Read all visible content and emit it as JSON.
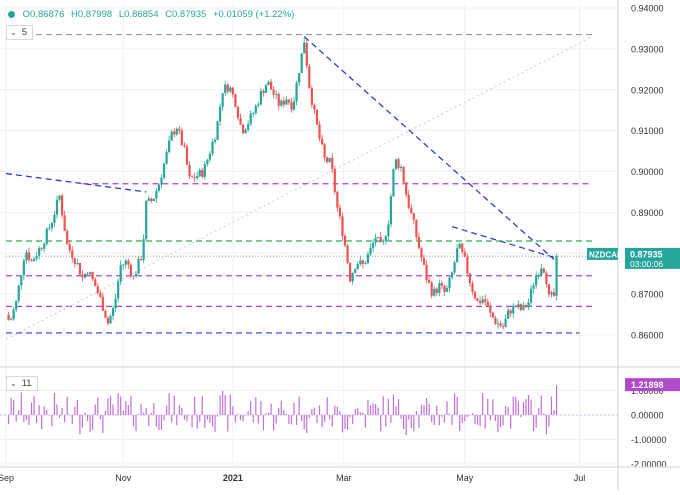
{
  "ohlc_legend": {
    "open": "O0.86876",
    "high": "H0.87998",
    "low": "L0.86854",
    "close": "C0.87935",
    "change": "+0.01059 (+1.22%)",
    "color": "#26a69a"
  },
  "price_pane_indicator": {
    "value": "5"
  },
  "volume_pane_indicator": {
    "value": "11"
  },
  "price_label": {
    "symbol": "NZDCAD",
    "price": "0.87935",
    "countdown": "03:00:06",
    "color": "#26a69a"
  },
  "volume_label": {
    "value": "1.21898",
    "color": "#b04ac8"
  },
  "colors": {
    "up": "#26a69a",
    "down": "#ef5350",
    "volume": "#c26fd8",
    "trend_blue": "#2b3fd0",
    "level_purple": "#b441d6",
    "level_green": "#22b14c",
    "grid": "#eef0f4"
  },
  "chart_data": [
    {
      "type": "candlestick",
      "title": "",
      "x_tick_labels": [
        "Sep",
        "Nov",
        "2021",
        "Mar",
        "May",
        "Jul"
      ],
      "y_tick_labels": [
        "0.94000",
        "0.93000",
        "0.92000",
        "0.91000",
        "0.90000",
        "0.89000",
        "0.88000",
        "0.87000",
        "0.86000"
      ],
      "ylim": [
        0.8575,
        0.94
      ],
      "x_range_weeks": [
        0,
        47
      ],
      "x_ticks_weeks": [
        0,
        9.2,
        17.8,
        26.5,
        36,
        45
      ],
      "grid": true,
      "close_path_weeks": [
        [
          0,
          0.865
        ],
        [
          0.3,
          0.863
        ],
        [
          0.8,
          0.868
        ],
        [
          1.5,
          0.881
        ],
        [
          2,
          0.878
        ],
        [
          2.8,
          0.882
        ],
        [
          3.5,
          0.887
        ],
        [
          4.2,
          0.894
        ],
        [
          4.8,
          0.882
        ],
        [
          5.5,
          0.878
        ],
        [
          6,
          0.874
        ],
        [
          6.4,
          0.876
        ],
        [
          7,
          0.872
        ],
        [
          7.5,
          0.868
        ],
        [
          8,
          0.863
        ],
        [
          8.5,
          0.867
        ],
        [
          9,
          0.877
        ],
        [
          9.5,
          0.878
        ],
        [
          10,
          0.874
        ],
        [
          10.7,
          0.88
        ],
        [
          11,
          0.892
        ],
        [
          11.5,
          0.893
        ],
        [
          12,
          0.897
        ],
        [
          12.5,
          0.903
        ],
        [
          13,
          0.909
        ],
        [
          13.4,
          0.911
        ],
        [
          14,
          0.905
        ],
        [
          14.4,
          0.898
        ],
        [
          15,
          0.899
        ],
        [
          15.5,
          0.9
        ],
        [
          16,
          0.905
        ],
        [
          16.5,
          0.91
        ],
        [
          17,
          0.92
        ],
        [
          17.5,
          0.921
        ],
        [
          18,
          0.917
        ],
        [
          18.5,
          0.91
        ],
        [
          19,
          0.912
        ],
        [
          19.5,
          0.915
        ],
        [
          20,
          0.919
        ],
        [
          20.5,
          0.922
        ],
        [
          21,
          0.919
        ],
        [
          21.5,
          0.916
        ],
        [
          22,
          0.918
        ],
        [
          22.5,
          0.916
        ],
        [
          23,
          0.925
        ],
        [
          23.4,
          0.932
        ],
        [
          23.8,
          0.921
        ],
        [
          24.2,
          0.914
        ],
        [
          24.6,
          0.908
        ],
        [
          25,
          0.903
        ],
        [
          25.5,
          0.902
        ],
        [
          26,
          0.891
        ],
        [
          26.5,
          0.884
        ],
        [
          27,
          0.874
        ],
        [
          27.5,
          0.878
        ],
        [
          28,
          0.877
        ],
        [
          28.5,
          0.88
        ],
        [
          29,
          0.884
        ],
        [
          29.5,
          0.881
        ],
        [
          30,
          0.888
        ],
        [
          30.5,
          0.903
        ],
        [
          31,
          0.901
        ],
        [
          31.5,
          0.893
        ],
        [
          32,
          0.887
        ],
        [
          32.5,
          0.88
        ],
        [
          33,
          0.874
        ],
        [
          33.5,
          0.87
        ],
        [
          34,
          0.872
        ],
        [
          34.5,
          0.87
        ],
        [
          35,
          0.875
        ],
        [
          35.5,
          0.882
        ],
        [
          36,
          0.878
        ],
        [
          36.5,
          0.872
        ],
        [
          37,
          0.868
        ],
        [
          37.5,
          0.869
        ],
        [
          38,
          0.865
        ],
        [
          38.5,
          0.863
        ],
        [
          39,
          0.862
        ],
        [
          39.5,
          0.866
        ],
        [
          40,
          0.867
        ],
        [
          40.5,
          0.866
        ],
        [
          41,
          0.868
        ],
        [
          41.5,
          0.874
        ],
        [
          42,
          0.877
        ],
        [
          42.3,
          0.876
        ],
        [
          42.6,
          0.869
        ],
        [
          43,
          0.8695
        ],
        [
          43.3,
          0.879
        ]
      ]
    },
    {
      "type": "bar",
      "title": "",
      "y_tick_labels": [
        "1.00000",
        "0.00000",
        "-1.00000",
        "-2.00000"
      ],
      "ylim": [
        -2.15,
        1.6
      ],
      "last_value": 1.21898
    }
  ]
}
